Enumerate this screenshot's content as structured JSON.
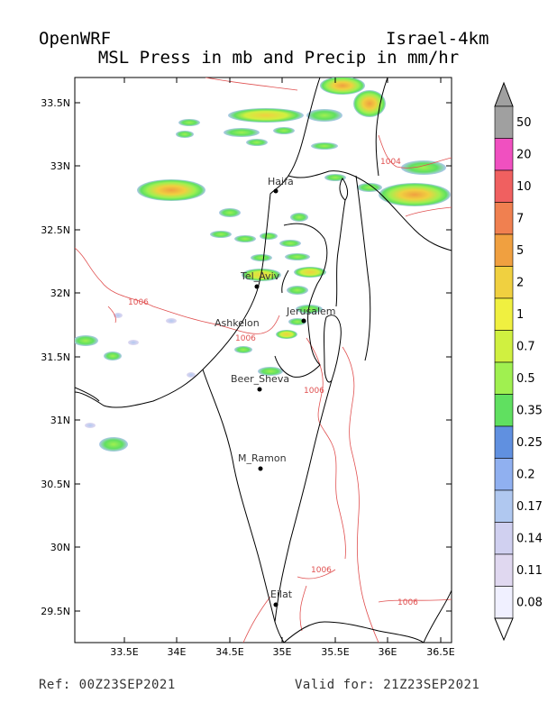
{
  "header": {
    "model": "OpenWRF",
    "domain": "Israel-4km",
    "title": "MSL Press in mb and Precip in mm/hr"
  },
  "footer": {
    "ref": "Ref: 00Z23SEP2021",
    "valid": "Valid for: 21Z23SEP2021"
  },
  "map": {
    "lat_ticks": [
      "33.5N",
      "33N",
      "32.5N",
      "32N",
      "31.5N",
      "31N",
      "30.5N",
      "30N",
      "29.5N"
    ],
    "lon_ticks": [
      "33.5E",
      "34E",
      "34.5E",
      "35E",
      "35.5E",
      "36E",
      "36.5E"
    ],
    "cities": [
      {
        "name": "Haifa"
      },
      {
        "name": "Tel_Aviv"
      },
      {
        "name": "Ashkelon"
      },
      {
        "name": "Jerusalem"
      },
      {
        "name": "Beer_Sheva"
      },
      {
        "name": "M_Ramon"
      },
      {
        "name": "Eilat"
      }
    ],
    "contour_labels": [
      "1006",
      "1004",
      "1006",
      "1006",
      "1006",
      "1006"
    ],
    "contour_color": "#e05050"
  },
  "colorbar": {
    "levels": [
      "50",
      "20",
      "10",
      "7",
      "5",
      "2",
      "1",
      "0.7",
      "0.5",
      "0.35",
      "0.25",
      "0.2",
      "0.17",
      "0.14",
      "0.11",
      "0.08"
    ],
    "colors": [
      "#a0a0a0",
      "#f050c0",
      "#f06060",
      "#f08050",
      "#f0a040",
      "#f0d040",
      "#f0f040",
      "#d0f040",
      "#a0f050",
      "#60e060",
      "#6090e0",
      "#90b0f0",
      "#b0c8f0",
      "#d0d0f0",
      "#e0d8f0",
      "#f0f0ff"
    ]
  }
}
